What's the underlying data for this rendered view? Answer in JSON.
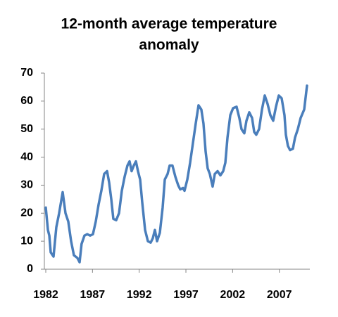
{
  "chart_data": {
    "type": "line",
    "title": [
      "12-month average temperature",
      "anomaly"
    ],
    "x": [
      1982.0,
      1982.23,
      1982.38,
      1982.53,
      1982.83,
      1983.13,
      1983.43,
      1983.81,
      1984.11,
      1984.41,
      1984.71,
      1985.01,
      1985.39,
      1985.62,
      1985.83,
      1986.14,
      1986.44,
      1986.75,
      1987.05,
      1987.35,
      1987.65,
      1987.95,
      1988.25,
      1988.56,
      1988.78,
      1989.01,
      1989.23,
      1989.54,
      1989.84,
      1990.14,
      1990.44,
      1990.74,
      1990.97,
      1991.19,
      1991.42,
      1991.65,
      1991.87,
      1992.1,
      1992.32,
      1992.63,
      1992.93,
      1993.23,
      1993.45,
      1993.68,
      1993.91,
      1994.21,
      1994.51,
      1994.74,
      1995.04,
      1995.26,
      1995.56,
      1995.87,
      1996.17,
      1996.39,
      1996.69,
      1996.85,
      1997.15,
      1997.45,
      1997.75,
      1998.05,
      1998.35,
      1998.65,
      1998.88,
      1999.11,
      1999.33,
      1999.56,
      1999.86,
      2000.09,
      2000.39,
      2000.69,
      2000.99,
      2001.22,
      2001.45,
      2001.75,
      2002.05,
      2002.42,
      2002.72,
      2002.95,
      2003.25,
      2003.48,
      2003.78,
      2004.08,
      2004.31,
      2004.53,
      2004.83,
      2005.14,
      2005.44,
      2005.74,
      2006.04,
      2006.34,
      2006.64,
      2006.94,
      2007.25,
      2007.55,
      2007.7,
      2007.92,
      2008.15,
      2008.45,
      2008.68,
      2008.98,
      2009.28,
      2009.66,
      2009.96
    ],
    "series": [
      {
        "name": "12-month average",
        "color": "#4a7ebb",
        "values": [
          22,
          14,
          12,
          6,
          4.5,
          15,
          20,
          27.5,
          20,
          17,
          10,
          5,
          4,
          2.5,
          9,
          12,
          12.5,
          12,
          12.5,
          17,
          23,
          28,
          34,
          35,
          31,
          25,
          18,
          17.5,
          20,
          28,
          33,
          37,
          38.5,
          35,
          37,
          38.5,
          35,
          32,
          24,
          14,
          10,
          9.5,
          11,
          14,
          10,
          13,
          22,
          32,
          34,
          37,
          37,
          33,
          30,
          28.5,
          29,
          28,
          32,
          38,
          45,
          52,
          58.5,
          57,
          52,
          42,
          36,
          34,
          29.5,
          34,
          35,
          33.5,
          35,
          38,
          47,
          55,
          57.5,
          58,
          54,
          50,
          48.5,
          53,
          56,
          54,
          49,
          48,
          50,
          57,
          62,
          59,
          55,
          53,
          58,
          62,
          61,
          55,
          48,
          44,
          42.5,
          43,
          47,
          50,
          54,
          57,
          65.5
        ]
      }
    ],
    "xlim": [
      1982,
      2010
    ],
    "xticks": [
      1982,
      1987,
      1992,
      1997,
      2002,
      2007
    ],
    "ylim": [
      0,
      70
    ],
    "yticks": [
      0,
      10,
      20,
      30,
      40,
      50,
      60,
      70
    ],
    "grid": false
  }
}
